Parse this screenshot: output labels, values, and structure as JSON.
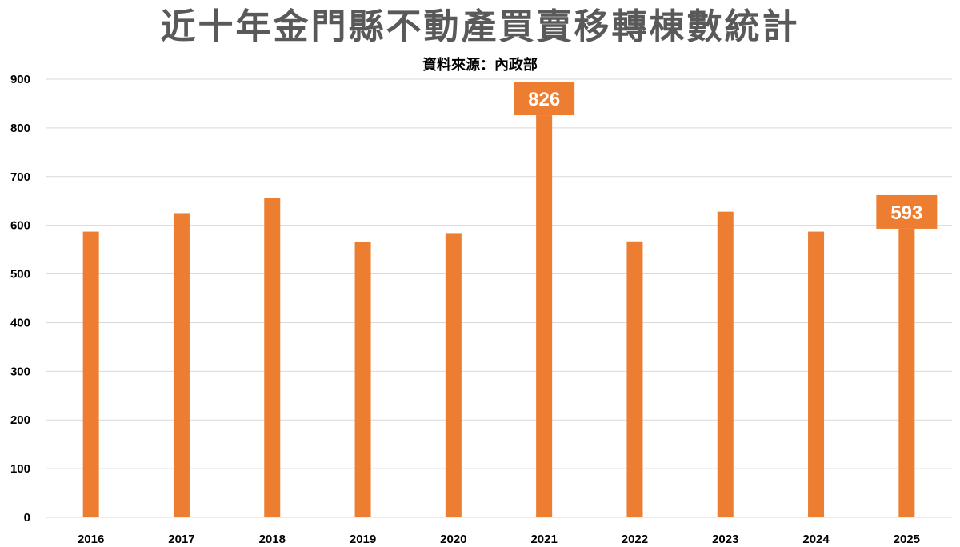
{
  "chart_data": {
    "type": "bar",
    "title": "近十年金門縣不動產買賣移轉棟數統計",
    "subtitle": "資料來源：內政部",
    "categories": [
      "2016",
      "2017",
      "2018",
      "2019",
      "2020",
      "2021",
      "2022",
      "2023",
      "2024",
      "2025"
    ],
    "values": [
      587,
      625,
      656,
      566,
      584,
      826,
      567,
      628,
      587,
      593
    ],
    "data_labels": [
      {
        "category": "2021",
        "value": "826"
      },
      {
        "category": "2025",
        "value": "593"
      }
    ],
    "yticks": [
      "0",
      "100",
      "200",
      "300",
      "400",
      "500",
      "600",
      "700",
      "800",
      "900"
    ],
    "ylim": [
      0,
      900
    ],
    "xlabel": "",
    "ylabel": "",
    "grid": true,
    "legend": "none",
    "colors": {
      "bar": "#ED7D31",
      "label_box": "#ED7D31",
      "label_text": "#FFFFFF",
      "grid": "#D9D9D9",
      "title": "#595959"
    }
  }
}
